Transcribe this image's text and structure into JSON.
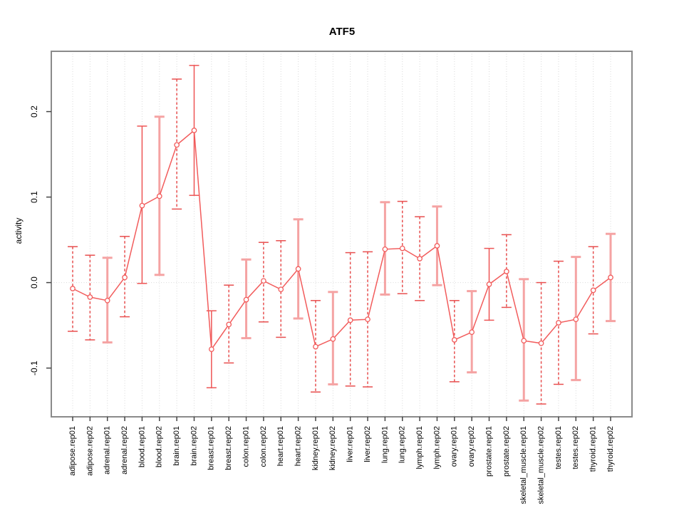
{
  "figure": {
    "title": "ATF5",
    "ylabel": "activity"
  },
  "chart_data": {
    "type": "line",
    "title": "ATF5",
    "xlabel": "",
    "ylabel": "activity",
    "ylim": [
      -0.157,
      0.2705
    ],
    "yticks": [
      -0.1,
      0.0,
      0.1,
      0.2
    ],
    "ytick_labels": [
      "-0.1",
      "0.0",
      "0.1",
      "0.2"
    ],
    "grid": {
      "vertical_dotted_per_category": true,
      "horizontal_dotted_at_zero": true
    },
    "legend_position": "none",
    "marker": "open-circle",
    "error_bars": true,
    "categories": [
      "adipose.rep01",
      "adipose.rep02",
      "adrenal.rep01",
      "adrenal.rep02",
      "blood.rep01",
      "blood.rep02",
      "brain.rep01",
      "brain.rep02",
      "breast.rep01",
      "breast.rep02",
      "colon.rep01",
      "colon.rep02",
      "heart.rep01",
      "heart.rep02",
      "kidney.rep01",
      "kidney.rep02",
      "liver.rep01",
      "liver.rep02",
      "lung.rep01",
      "lung.rep02",
      "lymph.rep01",
      "lymph.rep02",
      "ovary.rep01",
      "ovary.rep02",
      "prostate.rep01",
      "prostate.rep02",
      "skeletal_muscle.rep01",
      "skeletal_muscle.rep02",
      "testes.rep01",
      "testes.rep02",
      "thyroid.rep01",
      "thyroid.rep02"
    ],
    "series": [
      {
        "name": "activity",
        "values": [
          -0.007,
          -0.017,
          -0.021,
          0.006,
          0.09,
          0.101,
          0.161,
          0.178,
          -0.078,
          -0.049,
          -0.02,
          0.002,
          -0.008,
          0.016,
          -0.075,
          -0.066,
          -0.044,
          -0.043,
          0.039,
          0.04,
          0.028,
          0.043,
          -0.067,
          -0.058,
          -0.002,
          0.013,
          -0.068,
          -0.071,
          -0.047,
          -0.043,
          -0.009,
          0.006
        ],
        "ci_low": [
          -0.057,
          -0.067,
          -0.07,
          -0.04,
          -0.001,
          0.009,
          0.086,
          0.102,
          -0.123,
          -0.094,
          -0.065,
          -0.046,
          -0.064,
          -0.042,
          -0.128,
          -0.119,
          -0.121,
          -0.122,
          -0.014,
          -0.013,
          -0.021,
          -0.003,
          -0.116,
          -0.105,
          -0.044,
          -0.029,
          -0.138,
          -0.142,
          -0.119,
          -0.114,
          -0.06,
          -0.045
        ],
        "ci_high": [
          0.042,
          0.032,
          0.029,
          0.054,
          0.183,
          0.194,
          0.238,
          0.254,
          -0.033,
          -0.003,
          0.027,
          0.047,
          0.049,
          0.074,
          -0.021,
          -0.011,
          0.035,
          0.036,
          0.094,
          0.095,
          0.077,
          0.089,
          -0.021,
          -0.01,
          0.04,
          0.056,
          0.004,
          0.0,
          0.025,
          0.03,
          0.042,
          0.057
        ],
        "bar_styles": [
          "dashed",
          "dashed",
          "pink",
          "dashed",
          "red",
          "pink",
          "dashed",
          "red",
          "red",
          "dashed",
          "pink",
          "dashed",
          "dashed",
          "pink",
          "dashed",
          "pink",
          "dashed",
          "dashed",
          "pink",
          "dashed",
          "dashed",
          "pink",
          "dashed",
          "pink",
          "red",
          "dashed",
          "pink",
          "dashed",
          "dashed",
          "pink",
          "dashed",
          "pink"
        ]
      }
    ],
    "colors": {
      "line": "#f25c5c",
      "point_stroke": "#f25c5c",
      "point_fill": "#ffffff",
      "bar_pink": "#f5a3a3",
      "bar_red": "#ee5555",
      "bar_dashed": "#e84f4f",
      "grid": "#d9d9d9",
      "frame": "#8a8a8a",
      "tick": "#444444",
      "text": "#000000"
    }
  }
}
